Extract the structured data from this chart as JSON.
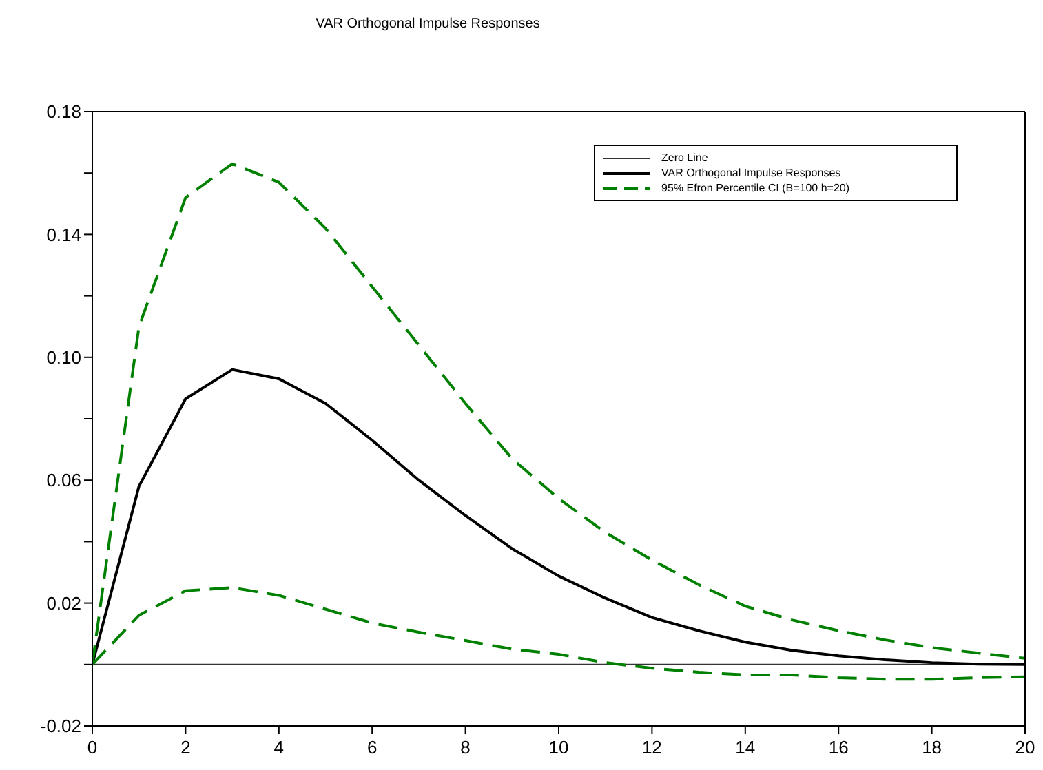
{
  "chart_data": {
    "type": "line",
    "title": "VAR Orthogonal Impulse Responses",
    "x": [
      0,
      1,
      2,
      3,
      4,
      5,
      6,
      7,
      8,
      9,
      10,
      11,
      12,
      13,
      14,
      15,
      16,
      17,
      18,
      19,
      20
    ],
    "series": [
      {
        "name": "Zero Line",
        "color": "#333333",
        "line_style": "solid",
        "values": [
          0,
          0,
          0,
          0,
          0,
          0,
          0,
          0,
          0,
          0,
          0,
          0,
          0,
          0,
          0,
          0,
          0,
          0,
          0,
          0,
          0
        ]
      },
      {
        "name": "VAR Orthogonal Impulse Responses",
        "color": "#000000",
        "line_style": "solid",
        "values": [
          0,
          0.058,
          0.0865,
          0.096,
          0.093,
          0.085,
          0.073,
          0.06,
          0.0485,
          0.0377,
          0.0288,
          0.0216,
          0.0153,
          0.011,
          0.0073,
          0.0046,
          0.0028,
          0.0015,
          0.0006,
          0.0001,
          0
        ]
      },
      {
        "name": "95% Efron Percentile CI (B=100 h=20)",
        "color": "#008000",
        "line_style": "dashed",
        "values": [
          0,
          0.11,
          0.152,
          0.163,
          0.157,
          0.142,
          0.123,
          0.104,
          0.085,
          0.067,
          0.054,
          0.043,
          0.034,
          0.026,
          0.019,
          0.0145,
          0.011,
          0.008,
          0.0055,
          0.0037,
          0.002
        ]
      },
      {
        "color": "#008000",
        "line_style": "dashed",
        "values": [
          0,
          0.016,
          0.024,
          0.025,
          0.0225,
          0.018,
          0.0135,
          0.0105,
          0.0078,
          0.005,
          0.0033,
          0.0006,
          -0.0012,
          -0.0025,
          -0.0034,
          -0.0034,
          -0.0043,
          -0.0048,
          -0.0048,
          -0.0043,
          -0.004
        ]
      }
    ],
    "xlim": [
      0,
      20
    ],
    "xticks": [
      0,
      2,
      4,
      6,
      8,
      10,
      12,
      14,
      16,
      18,
      20
    ],
    "ylim": [
      -0.02,
      0.18
    ],
    "yticks": [
      {
        "value": -0.02,
        "label": "-0.02"
      },
      {
        "value": 0,
        "label": null
      },
      {
        "value": 0.02,
        "label": "0.02"
      },
      {
        "value": 0.04,
        "label": null
      },
      {
        "value": 0.06,
        "label": "0.06"
      },
      {
        "value": 0.08,
        "label": null
      },
      {
        "value": 0.1,
        "label": "0.10"
      },
      {
        "value": 0.12,
        "label": null
      },
      {
        "value": 0.14,
        "label": "0.14"
      },
      {
        "value": 0.16,
        "label": null
      },
      {
        "value": 0.18,
        "label": "0.18"
      }
    ],
    "grid": false,
    "legend": "top right",
    "marker": "none"
  }
}
